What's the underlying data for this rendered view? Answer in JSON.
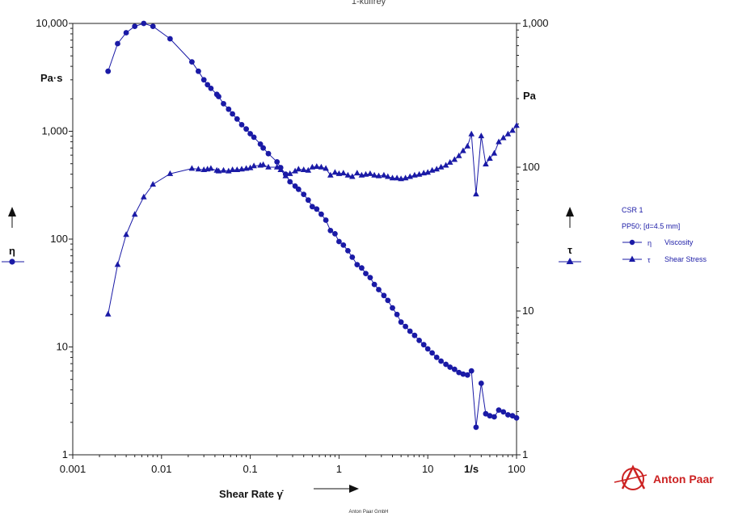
{
  "chart_data": {
    "type": "scatter",
    "title": "1-kulfrey",
    "x_scale": "log",
    "y_scale": "log",
    "xlim": [
      0.001,
      100
    ],
    "ylim_left": [
      1,
      10000
    ],
    "ylim_right": [
      1,
      1000
    ],
    "xlabel": "Shear Rate γ̇",
    "x_unit": "1/s",
    "left_unit": "Pa·s",
    "right_unit": "Pa",
    "left_symbol": "η",
    "right_symbol": "τ",
    "x_ticks": [
      "0.001",
      "0.01",
      "0.1",
      "1",
      "10",
      "100"
    ],
    "left_ticks": [
      "1",
      "10",
      "100",
      "1,000",
      "10,000"
    ],
    "right_ticks": [
      "1",
      "10",
      "100",
      "1,000"
    ],
    "grid": false,
    "legend": {
      "position": "right",
      "title": "CSR 1",
      "subtitle": "PP50; [d=4.5 mm]",
      "entries": [
        {
          "symbol": "η",
          "label": "Viscosity",
          "marker": "circle"
        },
        {
          "symbol": "τ",
          "label": "Shear Stress",
          "marker": "triangle"
        }
      ]
    },
    "series": [
      {
        "name": "Viscosity",
        "axis": "left",
        "marker": "circle",
        "color": "#1a1aa6",
        "points": [
          [
            0.0025,
            3600
          ],
          [
            0.0032,
            6500
          ],
          [
            0.004,
            8200
          ],
          [
            0.005,
            9400
          ],
          [
            0.0063,
            10000
          ],
          [
            0.008,
            9400
          ],
          [
            0.0125,
            7200
          ],
          [
            0.022,
            4400
          ],
          [
            0.026,
            3600
          ],
          [
            0.03,
            3000
          ],
          [
            0.033,
            2700
          ],
          [
            0.036,
            2500
          ],
          [
            0.042,
            2200
          ],
          [
            0.044,
            2100
          ],
          [
            0.05,
            1800
          ],
          [
            0.057,
            1600
          ],
          [
            0.063,
            1450
          ],
          [
            0.071,
            1300
          ],
          [
            0.08,
            1150
          ],
          [
            0.09,
            1050
          ],
          [
            0.1,
            950
          ],
          [
            0.11,
            880
          ],
          [
            0.13,
            760
          ],
          [
            0.14,
            700
          ],
          [
            0.16,
            620
          ],
          [
            0.2,
            520
          ],
          [
            0.22,
            460
          ],
          [
            0.25,
            400
          ],
          [
            0.28,
            340
          ],
          [
            0.32,
            310
          ],
          [
            0.35,
            290
          ],
          [
            0.4,
            260
          ],
          [
            0.45,
            230
          ],
          [
            0.5,
            200
          ],
          [
            0.56,
            190
          ],
          [
            0.63,
            170
          ],
          [
            0.71,
            150
          ],
          [
            0.8,
            120
          ],
          [
            0.9,
            112
          ],
          [
            1.0,
            95
          ],
          [
            1.12,
            88
          ],
          [
            1.26,
            78
          ],
          [
            1.41,
            68
          ],
          [
            1.6,
            58
          ],
          [
            1.8,
            54
          ],
          [
            2.0,
            48
          ],
          [
            2.24,
            44
          ],
          [
            2.5,
            38
          ],
          [
            2.8,
            34
          ],
          [
            3.2,
            30
          ],
          [
            3.55,
            27
          ],
          [
            4.0,
            23
          ],
          [
            4.5,
            20
          ],
          [
            5.0,
            17
          ],
          [
            5.6,
            15.5
          ],
          [
            6.3,
            14
          ],
          [
            7.1,
            12.8
          ],
          [
            8.0,
            11.5
          ],
          [
            9.0,
            10.5
          ],
          [
            10,
            9.6
          ],
          [
            11.2,
            8.8
          ],
          [
            12.6,
            8
          ],
          [
            14.1,
            7.4
          ],
          [
            16,
            6.9
          ],
          [
            17.8,
            6.5
          ],
          [
            20,
            6.2
          ],
          [
            22.4,
            5.8
          ],
          [
            25,
            5.6
          ],
          [
            28,
            5.5
          ],
          [
            31,
            6.0
          ],
          [
            35,
            1.8
          ],
          [
            40,
            4.6
          ],
          [
            45,
            2.4
          ],
          [
            50,
            2.3
          ],
          [
            56,
            2.25
          ],
          [
            63,
            2.6
          ],
          [
            71,
            2.5
          ],
          [
            80,
            2.35
          ],
          [
            90,
            2.3
          ],
          [
            100,
            2.2
          ]
        ]
      },
      {
        "name": "Shear Stress",
        "axis": "right",
        "marker": "triangle",
        "color": "#1a1aa6",
        "points": [
          [
            0.0025,
            9.5
          ],
          [
            0.0032,
            21
          ],
          [
            0.004,
            34
          ],
          [
            0.005,
            47
          ],
          [
            0.0063,
            62
          ],
          [
            0.008,
            76
          ],
          [
            0.0125,
            90
          ],
          [
            0.022,
            98
          ],
          [
            0.026,
            97
          ],
          [
            0.03,
            96
          ],
          [
            0.033,
            97
          ],
          [
            0.036,
            98
          ],
          [
            0.042,
            95
          ],
          [
            0.044,
            94
          ],
          [
            0.05,
            95
          ],
          [
            0.057,
            94
          ],
          [
            0.063,
            96
          ],
          [
            0.071,
            96
          ],
          [
            0.08,
            97
          ],
          [
            0.09,
            98
          ],
          [
            0.1,
            99
          ],
          [
            0.11,
            102
          ],
          [
            0.13,
            103
          ],
          [
            0.14,
            104
          ],
          [
            0.16,
            100
          ],
          [
            0.2,
            100
          ],
          [
            0.22,
            96
          ],
          [
            0.25,
            87
          ],
          [
            0.28,
            90
          ],
          [
            0.32,
            94
          ],
          [
            0.35,
            97
          ],
          [
            0.4,
            96
          ],
          [
            0.45,
            95
          ],
          [
            0.5,
            100
          ],
          [
            0.56,
            101
          ],
          [
            0.63,
            100
          ],
          [
            0.71,
            98
          ],
          [
            0.8,
            88
          ],
          [
            0.9,
            92
          ],
          [
            1.0,
            90
          ],
          [
            1.12,
            91
          ],
          [
            1.26,
            88
          ],
          [
            1.41,
            86
          ],
          [
            1.6,
            91
          ],
          [
            1.8,
            88
          ],
          [
            2.0,
            89
          ],
          [
            2.24,
            90
          ],
          [
            2.5,
            88
          ],
          [
            2.8,
            87
          ],
          [
            3.2,
            88
          ],
          [
            3.55,
            86
          ],
          [
            4.0,
            84
          ],
          [
            4.5,
            84
          ],
          [
            5.0,
            83
          ],
          [
            5.6,
            84
          ],
          [
            6.3,
            86
          ],
          [
            7.1,
            88
          ],
          [
            8.0,
            89
          ],
          [
            9.0,
            91
          ],
          [
            10,
            92
          ],
          [
            11.2,
            95
          ],
          [
            12.6,
            97
          ],
          [
            14.1,
            100
          ],
          [
            16,
            103
          ],
          [
            17.8,
            108
          ],
          [
            20,
            113
          ],
          [
            22.4,
            120
          ],
          [
            25,
            130
          ],
          [
            28,
            140
          ],
          [
            31,
            170
          ],
          [
            35,
            65
          ],
          [
            40,
            165
          ],
          [
            45,
            105
          ],
          [
            50,
            115
          ],
          [
            56,
            125
          ],
          [
            63,
            150
          ],
          [
            71,
            160
          ],
          [
            80,
            170
          ],
          [
            90,
            180
          ],
          [
            100,
            195
          ]
        ]
      }
    ]
  },
  "brand": {
    "name": "Anton Paar",
    "color": "#cc2222"
  },
  "footer": {
    "text": "Anton Paar GmbH"
  }
}
